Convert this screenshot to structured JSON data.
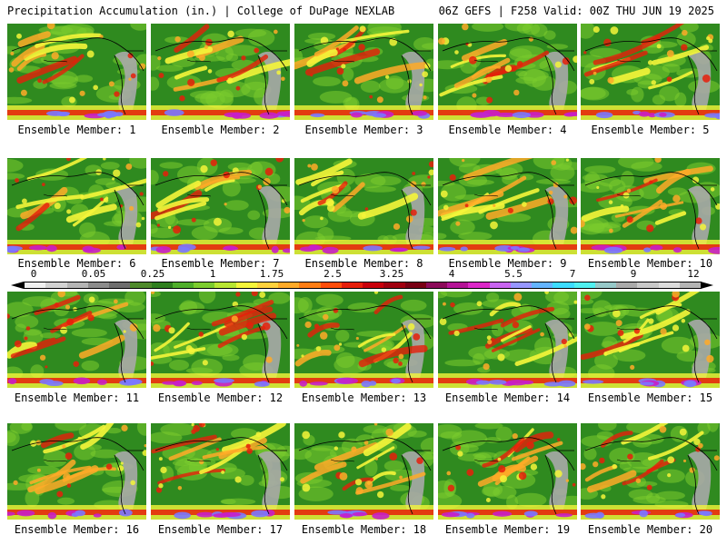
{
  "header": {
    "left": "Precipitation Accumulation (in.) | College of DuPage NEXLAB",
    "right": "06Z GEFS | F258 Valid: 00Z THU JUN 19 2025"
  },
  "members": [
    "Ensemble Member: 1",
    "Ensemble Member: 2",
    "Ensemble Member: 3",
    "Ensemble Member: 4",
    "Ensemble Member: 5",
    "Ensemble Member: 6",
    "Ensemble Member: 7",
    "Ensemble Member: 8",
    "Ensemble Member: 9",
    "Ensemble Member: 10",
    "Ensemble Member: 11",
    "Ensemble Member: 12",
    "Ensemble Member: 13",
    "Ensemble Member: 14",
    "Ensemble Member: 15",
    "Ensemble Member: 16",
    "Ensemble Member: 17",
    "Ensemble Member: 18",
    "Ensemble Member: 19",
    "Ensemble Member: 20"
  ],
  "colorbar": {
    "labels": [
      "0",
      "0.05",
      "0.25",
      "1",
      "1.75",
      "2.5",
      "3.25",
      "4",
      "5.5",
      "7",
      "9",
      "12"
    ],
    "colors": [
      "#f0f0f0",
      "#d2d2d2",
      "#b4b4b4",
      "#8c8c8c",
      "#6e6e6e",
      "#4e8a2a",
      "#2f7f1e",
      "#4fae2a",
      "#7ccc2e",
      "#b8e632",
      "#f5f53a",
      "#ffd23c",
      "#ffaa28",
      "#ff7d14",
      "#ff4d0a",
      "#e61e0a",
      "#c8000a",
      "#a0000f",
      "#780014",
      "#8c0a5a",
      "#b41496",
      "#dc28c8",
      "#c864f0",
      "#9696ff",
      "#64b4ff",
      "#3cdcff",
      "#50f0f0",
      "#96c8c8",
      "#aaaaaa",
      "#c8c8c8",
      "#dcdcdc",
      "#b4b4b4"
    ]
  },
  "palette": {
    "ocean": "#2f8a1f",
    "land_gray": "#a8a8a8",
    "light": "#7ccc2e",
    "yellow": "#f5f53a",
    "orange": "#ffaa28",
    "red": "#e61e0a",
    "magenta": "#c81ec8",
    "blue": "#7a78ff",
    "border": "#000000"
  }
}
